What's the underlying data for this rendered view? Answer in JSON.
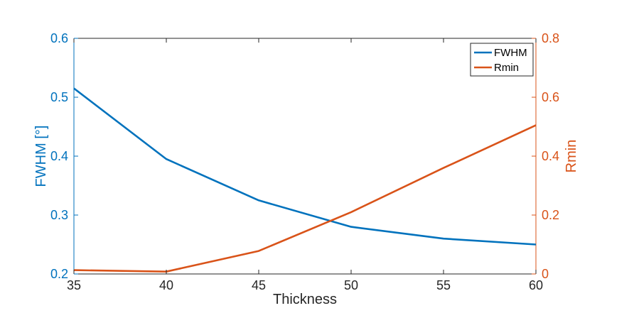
{
  "colors": {
    "left_axis": "#0072BD",
    "right_axis": "#D95319",
    "x_axis": "#262626",
    "frame": "#262626"
  },
  "chart_data": {
    "type": "line",
    "title": "",
    "xlabel": "Thickness",
    "ylabel_left": "FWHM [°]",
    "ylabel_right": "Rmin",
    "xlim": [
      35,
      60
    ],
    "ylim_left": [
      0.2,
      0.6
    ],
    "ylim_right": [
      0,
      0.8
    ],
    "x_ticks": [
      35,
      40,
      45,
      50,
      55,
      60
    ],
    "y_ticks_left": [
      "0.2",
      "0.3",
      "0.4",
      "0.5",
      "0.6"
    ],
    "y_ticks_right": [
      "0",
      "0.2",
      "0.4",
      "0.6",
      "0.8"
    ],
    "grid": false,
    "legend_position": "top-right",
    "series": [
      {
        "name": "FWHM",
        "axis": "left",
        "color": "#0072BD",
        "x": [
          35,
          40,
          45,
          50,
          55,
          60
        ],
        "values": [
          0.515,
          0.395,
          0.325,
          0.28,
          0.26,
          0.25
        ]
      },
      {
        "name": "Rmin",
        "axis": "right",
        "color": "#D95319",
        "x": [
          35,
          40,
          45,
          50,
          55,
          60
        ],
        "values": [
          0.013,
          0.008,
          0.078,
          0.21,
          0.36,
          0.505
        ]
      }
    ]
  }
}
